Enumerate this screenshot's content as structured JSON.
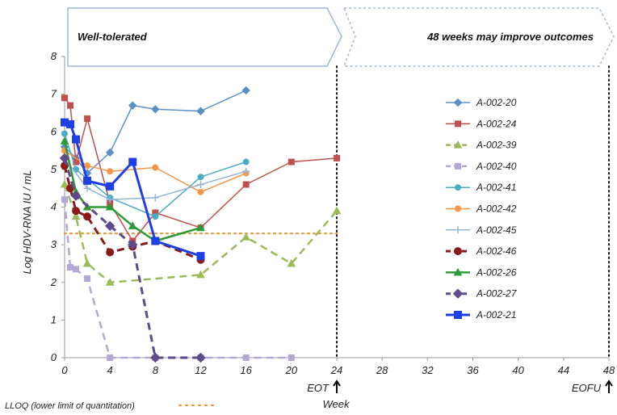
{
  "chart_data": {
    "type": "line",
    "ylabel": "Log HDV-RNA IU / mL",
    "xlabel": "Week",
    "xlim": [
      0,
      48
    ],
    "ylim": [
      0,
      8
    ],
    "x_ticks": [
      0,
      4,
      8,
      12,
      16,
      20,
      24,
      28,
      32,
      36,
      40,
      44,
      48
    ],
    "y_ticks": [
      0,
      1,
      2,
      3,
      4,
      5,
      6,
      7,
      8
    ],
    "grid": false,
    "legend_position": "right",
    "banners": [
      {
        "text": "Well-tolerated",
        "style": "solid"
      },
      {
        "text": "48 weeks may improve outcomes",
        "style": "dashed"
      }
    ],
    "markers": [
      {
        "x": 24,
        "label": "EOT"
      },
      {
        "x": 48,
        "label": "EOFU"
      }
    ],
    "reference_lines": [
      {
        "y": 3.3,
        "label": "LLOQ (lower limit of quantitation)",
        "color": "#e69a3a",
        "style": "dotted"
      }
    ],
    "series": [
      {
        "name": "A-002-20",
        "color": "#5b8fc7",
        "marker": "diamond",
        "dash": "solid",
        "width": 1.5,
        "points": [
          [
            0,
            5.6
          ],
          [
            1,
            5.3
          ],
          [
            2,
            4.9
          ],
          [
            4,
            5.45
          ],
          [
            6,
            6.7
          ],
          [
            8,
            6.6
          ],
          [
            12,
            6.55
          ],
          [
            16,
            7.1
          ]
        ]
      },
      {
        "name": "A-002-24",
        "color": "#c0504d",
        "marker": "square",
        "dash": "solid",
        "width": 1.5,
        "points": [
          [
            0,
            6.9
          ],
          [
            0.5,
            6.7
          ],
          [
            1,
            5.2
          ],
          [
            2,
            6.35
          ],
          [
            4,
            4.1
          ],
          [
            6,
            3.1
          ],
          [
            8,
            3.85
          ],
          [
            12,
            3.45
          ],
          [
            16,
            4.6
          ],
          [
            20,
            5.2
          ],
          [
            24,
            5.3
          ]
        ]
      },
      {
        "name": "A-002-39",
        "color": "#9bbb59",
        "marker": "triangle",
        "dash": "dashed",
        "width": 2.5,
        "points": [
          [
            0,
            4.6
          ],
          [
            1,
            3.75
          ],
          [
            2,
            2.5
          ],
          [
            4,
            2.0
          ],
          [
            12,
            2.2
          ],
          [
            16,
            3.2
          ],
          [
            20,
            2.5
          ],
          [
            24,
            3.9
          ]
        ]
      },
      {
        "name": "A-002-40",
        "color": "#b4a7d6",
        "marker": "square",
        "dash": "dashed",
        "width": 2.5,
        "points": [
          [
            0,
            4.2
          ],
          [
            0.5,
            2.4
          ],
          [
            1,
            2.35
          ],
          [
            2,
            2.1
          ],
          [
            4,
            0
          ],
          [
            8,
            0
          ],
          [
            12,
            0
          ],
          [
            16,
            0
          ],
          [
            20,
            0
          ]
        ]
      },
      {
        "name": "A-002-41",
        "color": "#4bacc6",
        "marker": "circle",
        "dash": "solid",
        "width": 1.5,
        "points": [
          [
            0,
            5.95
          ],
          [
            1,
            5.0
          ],
          [
            4,
            4.25
          ],
          [
            8,
            3.75
          ],
          [
            12,
            4.8
          ],
          [
            16,
            5.2
          ]
        ]
      },
      {
        "name": "A-002-42",
        "color": "#f79646",
        "marker": "circle",
        "dash": "solid",
        "width": 1.5,
        "points": [
          [
            0,
            5.5
          ],
          [
            2,
            5.1
          ],
          [
            4,
            4.95
          ],
          [
            8,
            5.05
          ],
          [
            12,
            4.4
          ],
          [
            16,
            4.9
          ]
        ]
      },
      {
        "name": "A-002-45",
        "color": "#95b3d7",
        "marker": "plus",
        "dash": "solid",
        "width": 1.5,
        "points": [
          [
            0,
            5.3
          ],
          [
            2,
            4.5
          ],
          [
            4,
            4.2
          ],
          [
            8,
            4.25
          ],
          [
            12,
            4.6
          ],
          [
            16,
            4.95
          ]
        ]
      },
      {
        "name": "A-002-46",
        "color": "#8b1a1a",
        "marker": "circle",
        "dash": "dashed",
        "width": 3,
        "points": [
          [
            0,
            5.1
          ],
          [
            0.5,
            4.5
          ],
          [
            1,
            3.9
          ],
          [
            2,
            3.75
          ],
          [
            4,
            2.8
          ],
          [
            6,
            2.95
          ],
          [
            8,
            3.1
          ],
          [
            12,
            2.6
          ]
        ]
      },
      {
        "name": "A-002-26",
        "color": "#2e9a36",
        "marker": "triangle",
        "dash": "solid",
        "width": 2.5,
        "points": [
          [
            0,
            5.75
          ],
          [
            1,
            4.4
          ],
          [
            2,
            4.0
          ],
          [
            4,
            4.0
          ],
          [
            6,
            3.5
          ],
          [
            8,
            3.1
          ],
          [
            12,
            3.45
          ]
        ]
      },
      {
        "name": "A-002-27",
        "color": "#5f4b8b",
        "marker": "diamond",
        "dash": "dashed",
        "width": 3,
        "points": [
          [
            0,
            5.3
          ],
          [
            1,
            4.3
          ],
          [
            4,
            3.5
          ],
          [
            6,
            3.0
          ],
          [
            8,
            0
          ],
          [
            12,
            0
          ]
        ]
      },
      {
        "name": "A-002-21",
        "color": "#1f3fe6",
        "marker": "square",
        "dash": "solid",
        "width": 3,
        "points": [
          [
            0,
            6.25
          ],
          [
            0.5,
            6.2
          ],
          [
            1,
            5.8
          ],
          [
            2,
            4.7
          ],
          [
            4,
            4.55
          ],
          [
            6,
            5.2
          ],
          [
            8,
            3.1
          ],
          [
            12,
            2.7
          ]
        ]
      }
    ]
  }
}
